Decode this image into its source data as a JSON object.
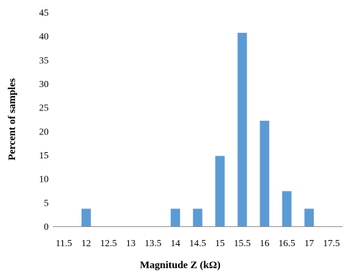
{
  "chart_data": {
    "type": "bar",
    "title": "",
    "xlabel": "Magnitude Z (kΩ)",
    "ylabel": "Percent of samples",
    "categories": [
      "11.5",
      "12",
      "12.5",
      "13",
      "13.5",
      "14",
      "14.5",
      "15",
      "15.5",
      "16",
      "16.5",
      "17",
      "17.5"
    ],
    "values": [
      0,
      3.7,
      0,
      0,
      0,
      3.7,
      3.7,
      14.8,
      40.7,
      22.2,
      7.4,
      3.7,
      0
    ],
    "ylim": [
      0,
      45
    ],
    "yticks": [
      0,
      5,
      10,
      15,
      20,
      25,
      30,
      35,
      40,
      45
    ],
    "grid": false,
    "legend": "none",
    "bar_color": "#5B9BD5",
    "axis_color": "#8C8C8C"
  }
}
